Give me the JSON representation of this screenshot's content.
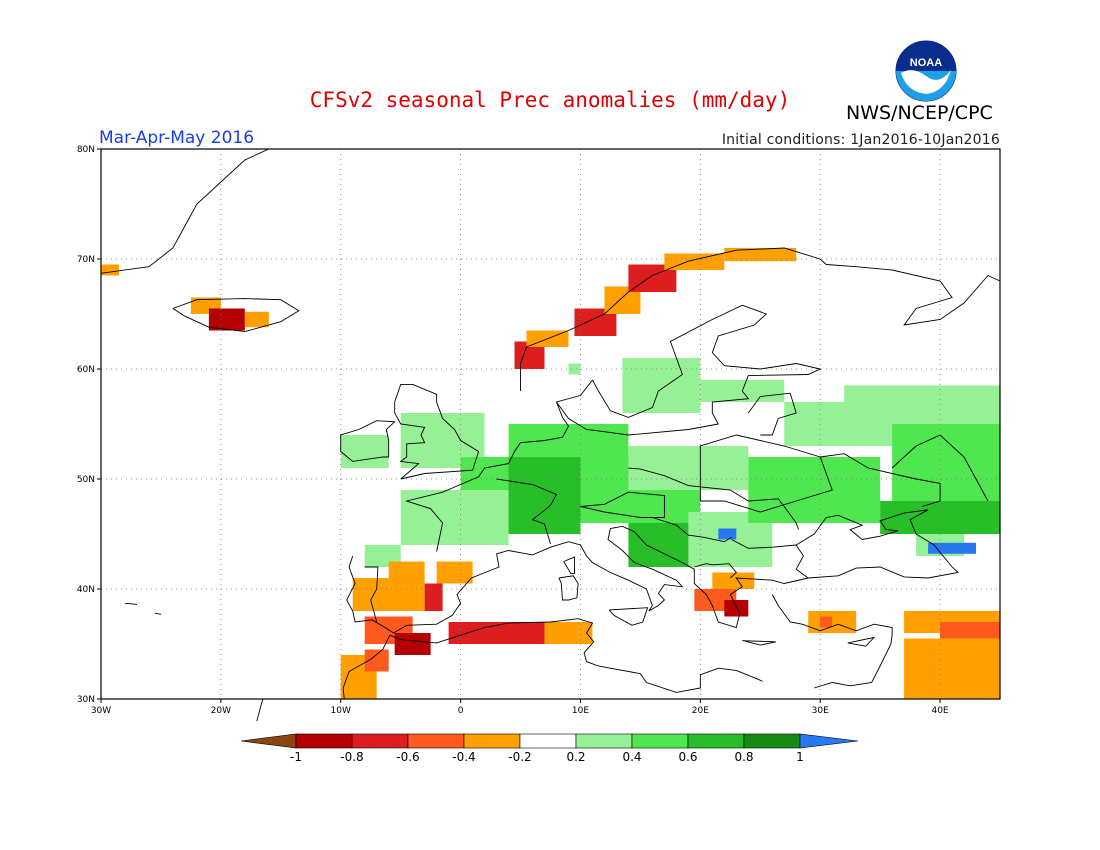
{
  "header": {
    "title": "CFSv2 seasonal Prec anomalies (mm/day)",
    "period": "Mar-Apr-May 2016",
    "initial_conditions": "Initial conditions: 1Jan2016-10Jan2016",
    "agency": "NWS/NCEP/CPC",
    "logo_text": "NOAA"
  },
  "map": {
    "lon_range": [
      -30,
      45
    ],
    "lat_range": [
      30,
      80
    ],
    "lon_ticks": [
      {
        "value": -30,
        "label": "30W"
      },
      {
        "value": -20,
        "label": "20W"
      },
      {
        "value": -10,
        "label": "10W"
      },
      {
        "value": 0,
        "label": "0"
      },
      {
        "value": 10,
        "label": "10E"
      },
      {
        "value": 20,
        "label": "20E"
      },
      {
        "value": 30,
        "label": "30E"
      },
      {
        "value": 40,
        "label": "40E"
      }
    ],
    "lat_ticks": [
      {
        "value": 30,
        "label": "30N"
      },
      {
        "value": 40,
        "label": "40N"
      },
      {
        "value": 50,
        "label": "50N"
      },
      {
        "value": 60,
        "label": "60N"
      },
      {
        "value": 70,
        "label": "70N"
      },
      {
        "value": 80,
        "label": "80N"
      }
    ],
    "grid": true
  },
  "colorbar": {
    "labels": [
      "-1",
      "-0.8",
      "-0.6",
      "-0.4",
      "-0.2",
      "0.2",
      "0.4",
      "0.6",
      "0.8",
      "1"
    ],
    "colors": [
      "#8b4513",
      "#b40000",
      "#dc1e1e",
      "#ff5a1e",
      "#ffa000",
      "#ffffff",
      "#96f096",
      "#50e650",
      "#28be28",
      "#148c14",
      "#2878f0"
    ]
  },
  "chart_data": {
    "type": "heatmap",
    "variable": "Prec anomalies (mm/day)",
    "regions": [
      {
        "lon": [
          -30,
          -28.5
        ],
        "lat": [
          68.5,
          69.5
        ],
        "class": 4
      },
      {
        "lon": [
          -22.5,
          -20
        ],
        "lat": [
          65,
          66.5
        ],
        "class": 4
      },
      {
        "lon": [
          -21,
          -18
        ],
        "lat": [
          63.5,
          65.5
        ],
        "class": 1
      },
      {
        "lon": [
          -18,
          -16
        ],
        "lat": [
          63.8,
          65.2
        ],
        "class": 4
      },
      {
        "lon": [
          4.5,
          7
        ],
        "lat": [
          60,
          62.5
        ],
        "class": 2
      },
      {
        "lon": [
          5.5,
          9
        ],
        "lat": [
          62,
          63.5
        ],
        "class": 4
      },
      {
        "lon": [
          9.5,
          13
        ],
        "lat": [
          63,
          65.5
        ],
        "class": 2
      },
      {
        "lon": [
          12,
          15
        ],
        "lat": [
          65,
          67.5
        ],
        "class": 4
      },
      {
        "lon": [
          14,
          18
        ],
        "lat": [
          67,
          69.5
        ],
        "class": 2
      },
      {
        "lon": [
          17,
          22
        ],
        "lat": [
          69,
          70.5
        ],
        "class": 4
      },
      {
        "lon": [
          22,
          28
        ],
        "lat": [
          69.8,
          71
        ],
        "class": 4
      },
      {
        "lon": [
          9,
          10
        ],
        "lat": [
          59.5,
          60.5
        ],
        "class": 6
      },
      {
        "lon": [
          13.5,
          20
        ],
        "lat": [
          56,
          61
        ],
        "class": 6
      },
      {
        "lon": [
          20,
          27
        ],
        "lat": [
          57,
          59
        ],
        "class": 6
      },
      {
        "lon": [
          -10,
          -6
        ],
        "lat": [
          51,
          54
        ],
        "class": 6
      },
      {
        "lon": [
          -5,
          2
        ],
        "lat": [
          51,
          56
        ],
        "class": 6
      },
      {
        "lon": [
          0,
          4
        ],
        "lat": [
          49,
          52
        ],
        "class": 7
      },
      {
        "lon": [
          -5,
          4
        ],
        "lat": [
          44,
          49
        ],
        "class": 6
      },
      {
        "lon": [
          4,
          14
        ],
        "lat": [
          52,
          55
        ],
        "class": 7
      },
      {
        "lon": [
          4,
          10
        ],
        "lat": [
          45,
          52
        ],
        "class": 8
      },
      {
        "lon": [
          10,
          20
        ],
        "lat": [
          46,
          52
        ],
        "class": 7
      },
      {
        "lon": [
          14,
          24
        ],
        "lat": [
          49,
          53
        ],
        "class": 6
      },
      {
        "lon": [
          14,
          20
        ],
        "lat": [
          42,
          46
        ],
        "class": 8
      },
      {
        "lon": [
          19,
          26
        ],
        "lat": [
          42,
          47
        ],
        "class": 6
      },
      {
        "lon": [
          21.5,
          23
        ],
        "lat": [
          44.5,
          45.5
        ],
        "class": 10
      },
      {
        "lon": [
          24,
          35
        ],
        "lat": [
          46,
          52
        ],
        "class": 7
      },
      {
        "lon": [
          27,
          36
        ],
        "lat": [
          53,
          57
        ],
        "class": 6
      },
      {
        "lon": [
          32,
          45
        ],
        "lat": [
          55,
          58.5
        ],
        "class": 6
      },
      {
        "lon": [
          36,
          45
        ],
        "lat": [
          47,
          55
        ],
        "class": 7
      },
      {
        "lon": [
          35,
          45
        ],
        "lat": [
          45,
          48
        ],
        "class": 8
      },
      {
        "lon": [
          38,
          42
        ],
        "lat": [
          43,
          45
        ],
        "class": 6
      },
      {
        "lon": [
          39,
          43
        ],
        "lat": [
          43.2,
          44.2
        ],
        "class": 10
      },
      {
        "lon": [
          -8,
          -5
        ],
        "lat": [
          42,
          44
        ],
        "class": 6
      },
      {
        "lon": [
          -9,
          -3
        ],
        "lat": [
          38,
          41
        ],
        "class": 4
      },
      {
        "lon": [
          -6,
          -3
        ],
        "lat": [
          40.5,
          42.5
        ],
        "class": 4
      },
      {
        "lon": [
          -2,
          1
        ],
        "lat": [
          40.5,
          42.5
        ],
        "class": 4
      },
      {
        "lon": [
          -3,
          -1.5
        ],
        "lat": [
          38,
          40.5
        ],
        "class": 2
      },
      {
        "lon": [
          -8,
          -4
        ],
        "lat": [
          35,
          37.5
        ],
        "class": 3
      },
      {
        "lon": [
          -5.5,
          -2.5
        ],
        "lat": [
          34,
          36
        ],
        "class": 1
      },
      {
        "lon": [
          -10,
          -7
        ],
        "lat": [
          30,
          34
        ],
        "class": 4
      },
      {
        "lon": [
          -8,
          -6
        ],
        "lat": [
          32.5,
          34.5
        ],
        "class": 3
      },
      {
        "lon": [
          -1,
          7
        ],
        "lat": [
          35,
          37
        ],
        "class": 2
      },
      {
        "lon": [
          7,
          11
        ],
        "lat": [
          35,
          37
        ],
        "class": 4
      },
      {
        "lon": [
          19.5,
          23
        ],
        "lat": [
          38,
          40
        ],
        "class": 3
      },
      {
        "lon": [
          22,
          24
        ],
        "lat": [
          37.5,
          39
        ],
        "class": 1
      },
      {
        "lon": [
          21,
          24.5
        ],
        "lat": [
          40,
          41.5
        ],
        "class": 4
      },
      {
        "lon": [
          29,
          33
        ],
        "lat": [
          36,
          38
        ],
        "class": 4
      },
      {
        "lon": [
          30,
          31
        ],
        "lat": [
          36.5,
          37.5
        ],
        "class": 3
      },
      {
        "lon": [
          37,
          45
        ],
        "lat": [
          36,
          38
        ],
        "class": 4
      },
      {
        "lon": [
          40,
          45
        ],
        "lat": [
          35.5,
          37
        ],
        "class": 3
      },
      {
        "lon": [
          37,
          45
        ],
        "lat": [
          30,
          35.5
        ],
        "class": 4
      }
    ]
  }
}
